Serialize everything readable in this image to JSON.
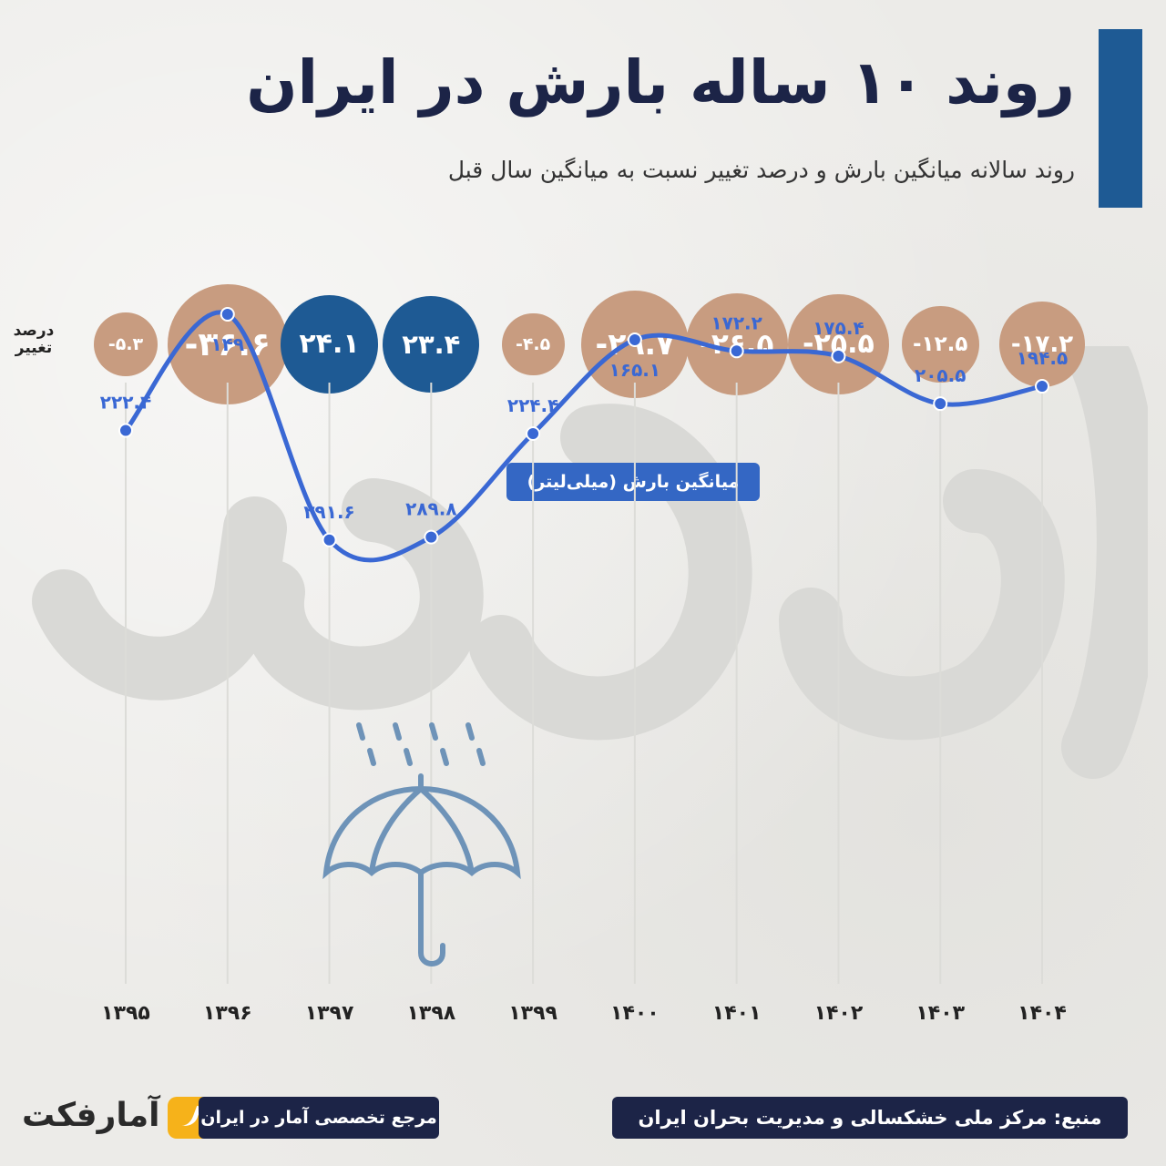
{
  "title": "روند ۱۰ ساله بارش در ایران",
  "subtitle": "روند سالانه میانگین بارش و درصد تغییر نسبت به میانگین سال قبل",
  "change_label": [
    "درصد",
    "تغییر"
  ],
  "legend_label": "میانگین بارش (میلی‌لیتر)",
  "colors": {
    "negative_bubble": "#c89c80",
    "positive_bubble": "#1e5a94",
    "line": "#3a68d4",
    "title_bar": "#1e5a94",
    "footer_pill": "#1c2447",
    "logo_accent": "#f6b21a"
  },
  "chart_data": {
    "type": "line",
    "xlabel": "",
    "ylabel": "",
    "categories": [
      "۱۳۹۵",
      "۱۳۹۶",
      "۱۳۹۷",
      "۱۳۹۸",
      "۱۳۹۹",
      "۱۴۰۰",
      "۱۴۰۱",
      "۱۴۰۲",
      "۱۴۰۳",
      "۱۴۰۴"
    ],
    "series": [
      {
        "name": "میانگین بارش (میلی‌لیتر)",
        "values": [
          222.4,
          149,
          291.6,
          289.8,
          224.4,
          165.1,
          172.2,
          175.4,
          205.5,
          194.5
        ],
        "labels": [
          "۲۲۲.۴",
          "۱۴۹",
          "۲۹۱.۶",
          "۲۸۹.۸",
          "۲۲۴.۴",
          "۱۶۵.۱",
          "۱۷۲.۲",
          "۱۷۵.۴",
          "۲۰۵.۵",
          "۱۹۴.۵"
        ]
      }
    ],
    "percent_change": {
      "values": [
        -5.3,
        -36.6,
        24.1,
        23.4,
        -4.5,
        -29.7,
        -26.5,
        -25.5,
        -12.5,
        -17.2
      ],
      "labels": [
        "-۵.۳",
        "-۳۶.۶",
        "۲۴.۱",
        "۲۳.۴",
        "-۴.۵",
        "-۲۹.۷",
        "-۲۶.۵",
        "-۲۵.۵",
        "-۱۲.۵",
        "-۱۷.۲"
      ]
    },
    "grid": false
  },
  "footer": {
    "logo_text": "آمارفکت",
    "tagline": "مرجع تخصصی آمار در ایران",
    "source": "منبع: مرکز ملی خشکسالی و مدیریت بحران ایران"
  }
}
